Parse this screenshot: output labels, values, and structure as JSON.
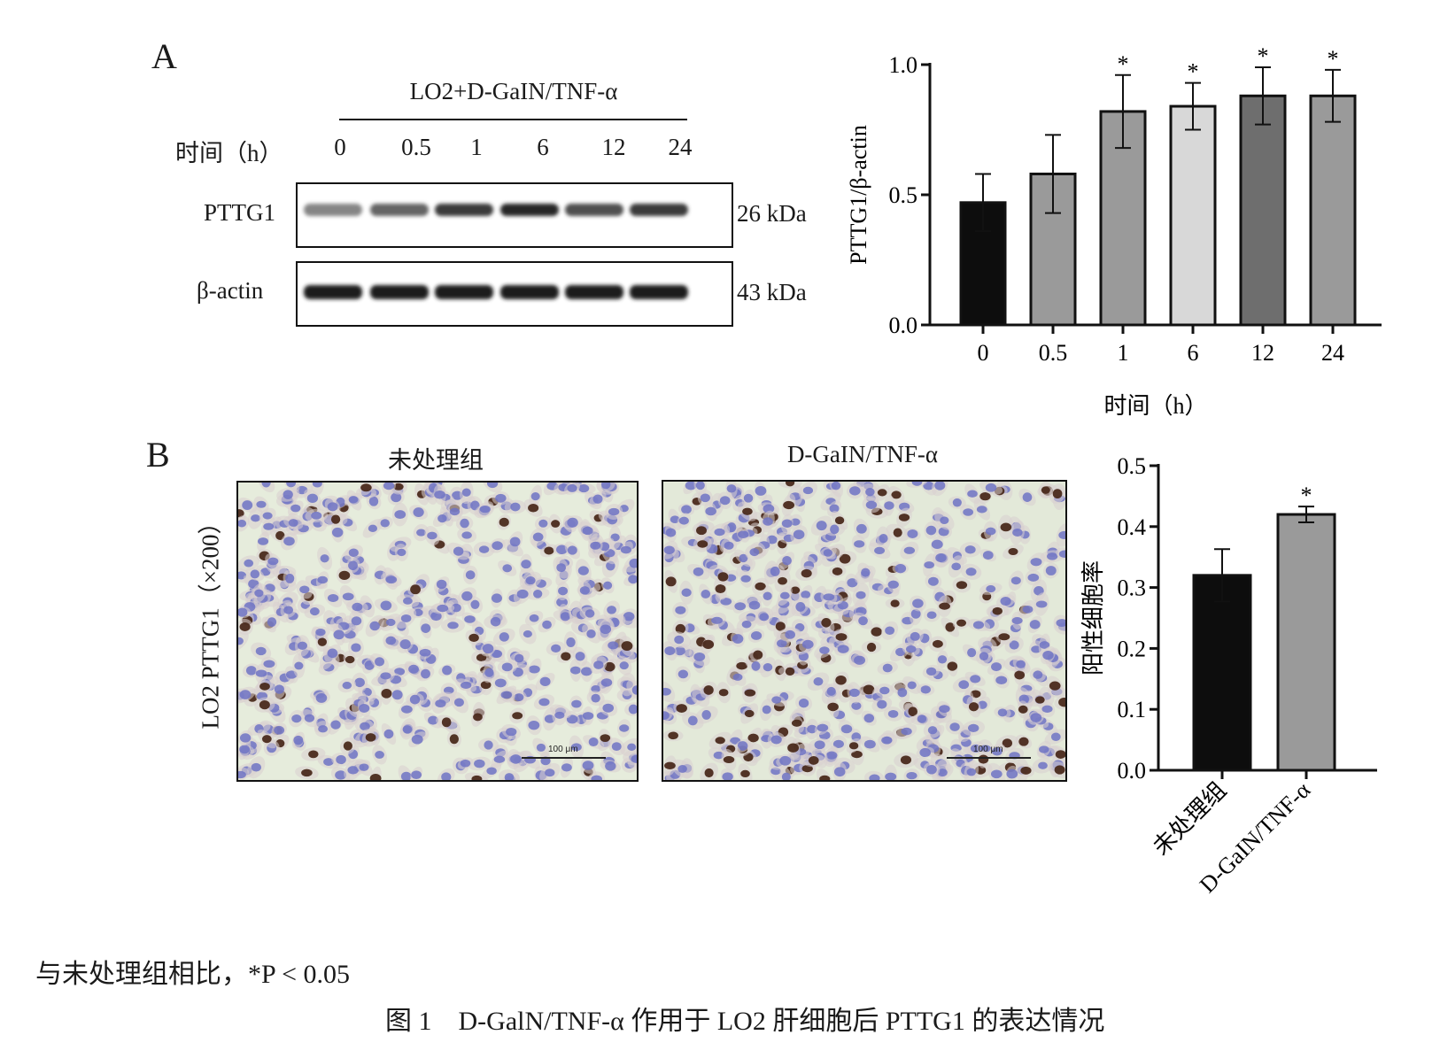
{
  "panel_a": {
    "letter": "A",
    "treatment_label": "LO2+D-GaIN/TNF-α",
    "time_label": "时间（h）",
    "lanes": [
      "0",
      "0.5",
      "1",
      "6",
      "12",
      "24"
    ],
    "blots": [
      {
        "protein": "PTTG1",
        "size": "26 kDa",
        "intensities": [
          0.45,
          0.6,
          0.8,
          0.9,
          0.7,
          0.8
        ]
      },
      {
        "protein": "β-actin",
        "size": "43 kDa",
        "intensities": [
          0.95,
          0.95,
          0.95,
          0.95,
          0.95,
          0.95
        ]
      }
    ]
  },
  "panel_b": {
    "letter": "B",
    "side_label": "LO2 PTTG1（×200）",
    "images": [
      {
        "title": "未处理组",
        "scale_label": "100 μm"
      },
      {
        "title": "D-GaIN/TNF-α",
        "scale_label": "100 μm"
      }
    ]
  },
  "chart_data": [
    {
      "type": "bar",
      "categories": [
        "0",
        "0.5",
        "1",
        "6",
        "12",
        "24"
      ],
      "values": [
        0.47,
        0.58,
        0.82,
        0.84,
        0.88,
        0.88
      ],
      "errors": [
        0.11,
        0.15,
        0.14,
        0.09,
        0.11,
        0.1
      ],
      "significance": [
        "",
        "",
        "*",
        "*",
        "*",
        "*"
      ],
      "colors": [
        "#0d0d0d",
        "#9a9a9a",
        "#9a9a9a",
        "#d8d8d8",
        "#6e6e6e",
        "#9a9a9a"
      ],
      "title": "",
      "xlabel": "时间（h）",
      "ylabel": "PTTG1/β-actin",
      "ylim": [
        0,
        1.0
      ],
      "yticks": [
        "0.0",
        "0.5",
        "1.0"
      ]
    },
    {
      "type": "bar",
      "categories": [
        "未处理组",
        "D-GaIN/TNF-α"
      ],
      "values": [
        0.32,
        0.42
      ],
      "errors": [
        0.043,
        0.013
      ],
      "significance": [
        "",
        "*"
      ],
      "colors": [
        "#0d0d0d",
        "#9a9a9a"
      ],
      "title": "",
      "xlabel": "",
      "ylabel": "阳性细胞率",
      "ylim": [
        0,
        0.5
      ],
      "yticks": [
        "0.0",
        "0.1",
        "0.2",
        "0.3",
        "0.4",
        "0.5"
      ]
    }
  ],
  "footnote": "与未处理组相比，*P < 0.05",
  "caption": "图 1　D-GalN/TNF-α 作用于 LO2 肝细胞后 PTTG1 的表达情况"
}
